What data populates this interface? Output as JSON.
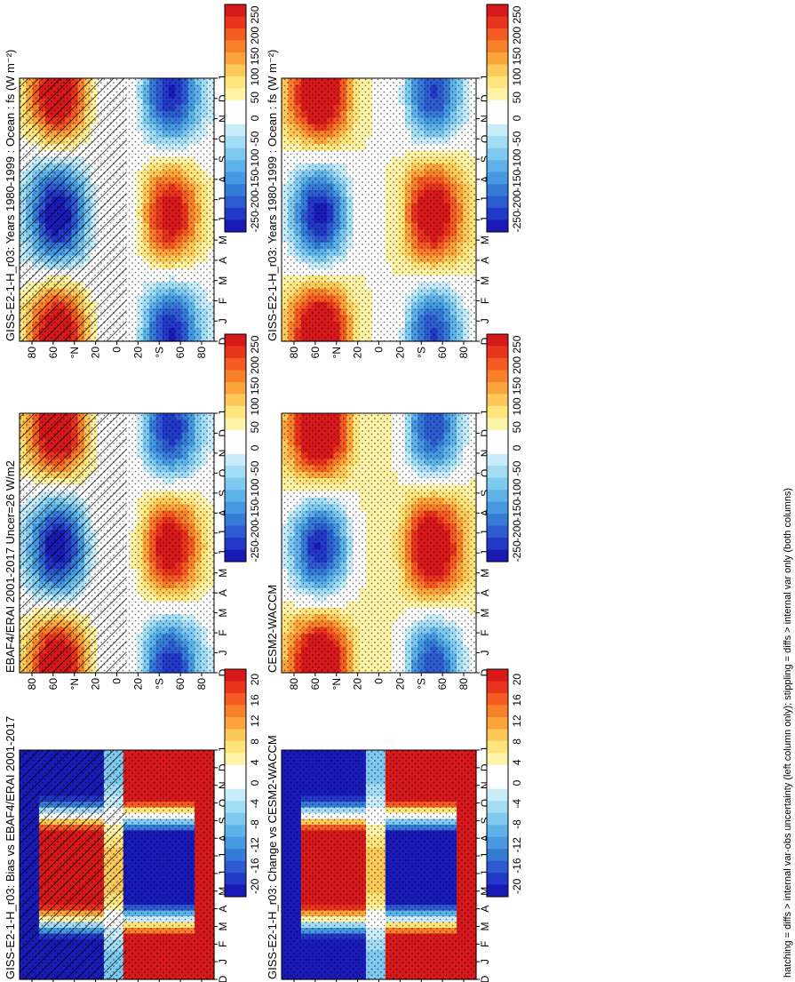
{
  "footer_note": "hatching = diffs > internal var-obs uncertainty (left column only); stippling = diffs > internal var only (both columns)",
  "chart_data": [
    {
      "type": "heatmap",
      "id": "p1",
      "title": "GISS-E2-1-H_r03: Years 1980-1999 : Ocean : fs (W m⁻²)",
      "zscale": "flux",
      "hatch": true,
      "stipple": true
    },
    {
      "type": "heatmap",
      "id": "p2",
      "title": "EBAF4/ERAI 2001-2017 Uncer=26 W/m2",
      "zscale": "flux",
      "hatch": true,
      "stipple": true
    },
    {
      "type": "heatmap",
      "id": "p3",
      "title": "GISS-E2-1-H_r03: Bias vs EBAF4/ERAI 2001-2017",
      "zscale": "diff",
      "hatch": true,
      "stipple": true
    },
    {
      "type": "heatmap",
      "id": "p4",
      "title": "GISS-E2-1-H_r03: Years 1980-1999 : Ocean : fs (W m⁻²)",
      "zscale": "flux",
      "hatch": false,
      "stipple": true
    },
    {
      "type": "heatmap",
      "id": "p5",
      "title": "CESM2-WACCM",
      "zscale": "flux",
      "hatch": false,
      "stipple": true
    },
    {
      "type": "heatmap",
      "id": "p6",
      "title": "GISS-E2-1-H_r03: Change vs CESM2-WACCM",
      "zscale": "diff",
      "hatch": false,
      "stipple": true
    }
  ],
  "month_ticks": [
    "D",
    "J",
    "F",
    "M",
    "A",
    "M",
    "J",
    "J",
    "A",
    "S",
    "O",
    "N",
    "D",
    "J"
  ],
  "lat_ticks": [
    "80",
    "60",
    "°N",
    "20",
    "0",
    "20",
    "°S",
    "60",
    "80"
  ],
  "colorbars": {
    "flux": {
      "labels": [
        "250",
        "200",
        "150",
        "100",
        "50",
        "0",
        "-50",
        "-100",
        "-150",
        "-200",
        "-250"
      ]
    },
    "diff": {
      "labels": [
        "20",
        "16",
        "12",
        "8",
        "4",
        "0",
        "-4",
        "-8",
        "-12",
        "-16",
        "-20"
      ]
    }
  },
  "colors": [
    "#d7191c",
    "#e8341d",
    "#f35b22",
    "#f7812b",
    "#fba43b",
    "#fdc85a",
    "#fde47d",
    "#fff3a8",
    "#ffffff",
    "#ffffff",
    "#c9ecfa",
    "#a2dcf5",
    "#7ec9ef",
    "#5db3e8",
    "#4599e0",
    "#357bd6",
    "#2e5bd0",
    "#2238c8",
    "#1a1ab8"
  ]
}
